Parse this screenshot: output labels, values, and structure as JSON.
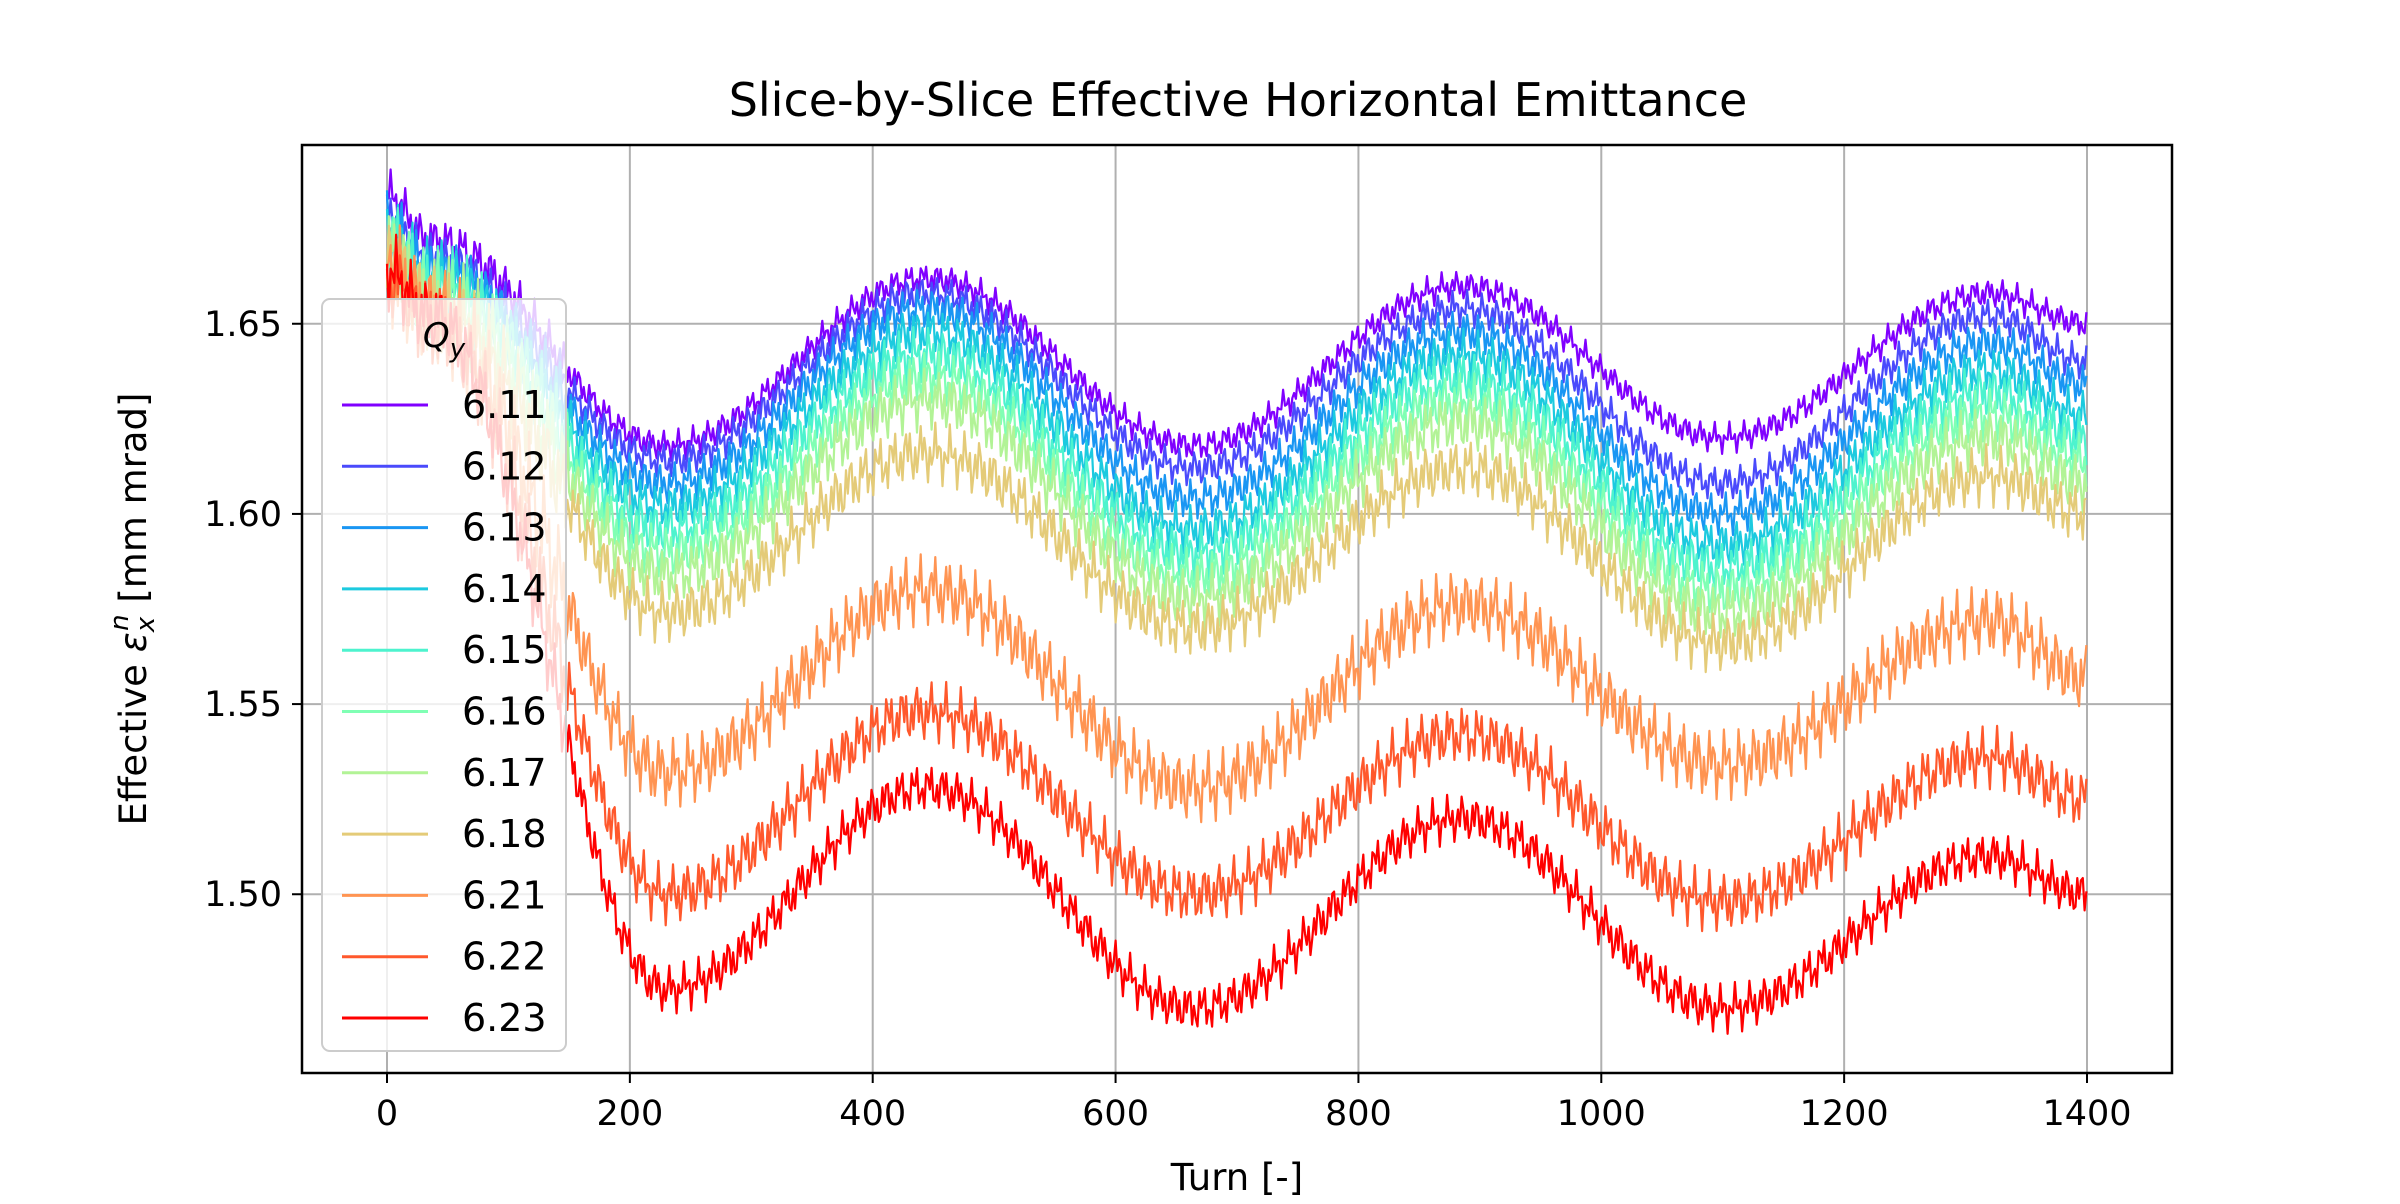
{
  "chart_data": {
    "type": "line",
    "title": "Slice-by-Slice Effective Horizontal Emittance",
    "xlabel": "Turn [-]",
    "ylabel_prefix": "Effective ",
    "ylabel_symbol": "ε",
    "ylabel_sub": "x",
    "ylabel_sup": "n",
    "ylabel_suffix": " [mm mrad]",
    "xlim": [
      -70,
      1470
    ],
    "ylim": [
      1.453,
      1.697
    ],
    "xticks": [
      0,
      200,
      400,
      600,
      800,
      1000,
      1200,
      1400
    ],
    "xtick_labels": [
      "0",
      "200",
      "400",
      "600",
      "800",
      "1000",
      "1200",
      "1400"
    ],
    "yticks": [
      1.5,
      1.55,
      1.6,
      1.65
    ],
    "ytick_labels": [
      "1.50",
      "1.55",
      "1.60",
      "1.65"
    ],
    "grid": true,
    "legend": {
      "title_main": "Q",
      "title_sub": "y",
      "placement": "upper-left"
    },
    "x_range": [
      0,
      1400
    ],
    "oscillation_period_turns": 440,
    "series": [
      {
        "name": "6.11",
        "color": "#8000ff",
        "start": 1.684,
        "valleys": [
          1.618,
          1.618,
          1.62
        ],
        "peaks": [
          1.662,
          1.66,
          1.658
        ],
        "end": 1.65,
        "ripple": 0.005
      },
      {
        "name": "6.12",
        "color": "#4a4afc",
        "start": 1.678,
        "valleys": [
          1.614,
          1.612,
          1.608
        ],
        "peaks": [
          1.658,
          1.654,
          1.652
        ],
        "end": 1.64,
        "ripple": 0.006
      },
      {
        "name": "6.13",
        "color": "#1996f3",
        "start": 1.676,
        "valleys": [
          1.608,
          1.604,
          1.6
        ],
        "peaks": [
          1.654,
          1.648,
          1.645
        ],
        "end": 1.634,
        "ripple": 0.007
      },
      {
        "name": "6.14",
        "color": "#1ccadf",
        "start": 1.674,
        "valleys": [
          1.602,
          1.596,
          1.592
        ],
        "peaks": [
          1.648,
          1.642,
          1.638
        ],
        "end": 1.626,
        "ripple": 0.008
      },
      {
        "name": "6.15",
        "color": "#4df3ce",
        "start": 1.672,
        "valleys": [
          1.596,
          1.59,
          1.586
        ],
        "peaks": [
          1.642,
          1.636,
          1.632
        ],
        "end": 1.62,
        "ripple": 0.009
      },
      {
        "name": "6.16",
        "color": "#80ffb4",
        "start": 1.67,
        "valleys": [
          1.59,
          1.584,
          1.58
        ],
        "peaks": [
          1.636,
          1.63,
          1.626
        ],
        "end": 1.614,
        "ripple": 0.009
      },
      {
        "name": "6.17",
        "color": "#b2f396",
        "start": 1.668,
        "valleys": [
          1.584,
          1.578,
          1.574
        ],
        "peaks": [
          1.63,
          1.624,
          1.62
        ],
        "end": 1.608,
        "ripple": 0.01
      },
      {
        "name": "6.18",
        "color": "#e4cb78",
        "start": 1.666,
        "valleys": [
          1.574,
          1.57,
          1.566
        ],
        "peaks": [
          1.616,
          1.612,
          1.61
        ],
        "end": 1.6,
        "ripple": 0.01
      },
      {
        "name": "6.21",
        "color": "#ff9452",
        "start": 1.664,
        "valleys": [
          1.532,
          1.528,
          1.534
        ],
        "peaks": [
          1.58,
          1.576,
          1.572
        ],
        "end": 1.557,
        "ripple": 0.012
      },
      {
        "name": "6.22",
        "color": "#ff582c",
        "start": 1.662,
        "valleys": [
          1.5,
          1.5,
          1.498
        ],
        "peaks": [
          1.548,
          1.542,
          1.536
        ],
        "end": 1.525,
        "ripple": 0.01
      },
      {
        "name": "6.23",
        "color": "#ff0000",
        "start": 1.664,
        "valleys": [
          1.475,
          1.47,
          1.47
        ],
        "peaks": [
          1.528,
          1.52,
          1.51
        ],
        "end": 1.5,
        "ripple": 0.008
      }
    ]
  }
}
